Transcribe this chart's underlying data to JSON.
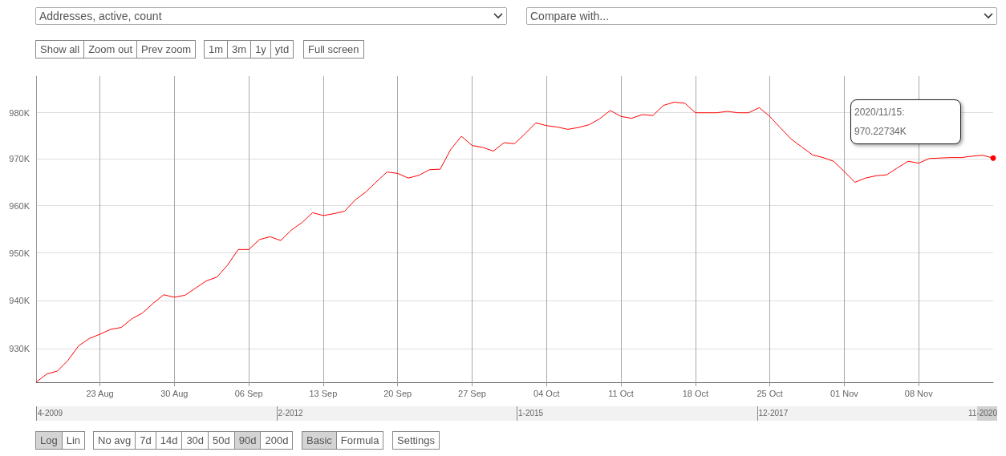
{
  "chart_data": {
    "type": "line",
    "log": true,
    "grid": true,
    "xlim": [
      "2020-08-17",
      "2020-11-15"
    ],
    "xticks": [
      {
        "value": "2020-08-23",
        "label": "23 Aug"
      },
      {
        "value": "2020-08-30",
        "label": "30 Aug"
      },
      {
        "value": "2020-09-06",
        "label": "06 Sep"
      },
      {
        "value": "2020-09-13",
        "label": "13 Sep"
      },
      {
        "value": "2020-09-20",
        "label": "20 Sep"
      },
      {
        "value": "2020-09-27",
        "label": "27 Sep"
      },
      {
        "value": "2020-10-04",
        "label": "04 Oct"
      },
      {
        "value": "2020-10-11",
        "label": "11 Oct"
      },
      {
        "value": "2020-10-18",
        "label": "18 Oct"
      },
      {
        "value": "2020-10-25",
        "label": "25 Oct"
      },
      {
        "value": "2020-11-01",
        "label": "01 Nov"
      },
      {
        "value": "2020-11-08",
        "label": "08 Nov"
      }
    ],
    "ylim": [
      923.1,
      988
    ],
    "yticks": [
      {
        "value": 930,
        "label": "930K"
      },
      {
        "value": 940,
        "label": "940K"
      },
      {
        "value": 950,
        "label": "950K"
      },
      {
        "value": 960,
        "label": "960K"
      },
      {
        "value": 970,
        "label": "970K"
      },
      {
        "value": 980,
        "label": "980K"
      }
    ],
    "x": [
      "2020-08-17",
      "2020-08-18",
      "2020-08-19",
      "2020-08-20",
      "2020-08-21",
      "2020-08-22",
      "2020-08-23",
      "2020-08-24",
      "2020-08-25",
      "2020-08-26",
      "2020-08-27",
      "2020-08-28",
      "2020-08-29",
      "2020-08-30",
      "2020-08-31",
      "2020-09-01",
      "2020-09-02",
      "2020-09-03",
      "2020-09-04",
      "2020-09-05",
      "2020-09-06",
      "2020-09-07",
      "2020-09-08",
      "2020-09-09",
      "2020-09-10",
      "2020-09-11",
      "2020-09-12",
      "2020-09-13",
      "2020-09-14",
      "2020-09-15",
      "2020-09-16",
      "2020-09-17",
      "2020-09-18",
      "2020-09-19",
      "2020-09-20",
      "2020-09-21",
      "2020-09-22",
      "2020-09-23",
      "2020-09-24",
      "2020-09-25",
      "2020-09-26",
      "2020-09-27",
      "2020-09-28",
      "2020-09-29",
      "2020-09-30",
      "2020-10-01",
      "2020-10-02",
      "2020-10-03",
      "2020-10-04",
      "2020-10-05",
      "2020-10-06",
      "2020-10-07",
      "2020-10-08",
      "2020-10-09",
      "2020-10-10",
      "2020-10-11",
      "2020-10-12",
      "2020-10-13",
      "2020-10-14",
      "2020-10-15",
      "2020-10-16",
      "2020-10-17",
      "2020-10-18",
      "2020-10-19",
      "2020-10-20",
      "2020-10-21",
      "2020-10-22",
      "2020-10-23",
      "2020-10-24",
      "2020-10-25",
      "2020-10-26",
      "2020-10-27",
      "2020-10-28",
      "2020-10-29",
      "2020-10-30",
      "2020-10-31",
      "2020-11-01",
      "2020-11-02",
      "2020-11-03",
      "2020-11-04",
      "2020-11-05",
      "2020-11-06",
      "2020-11-07",
      "2020-11-08",
      "2020-11-09",
      "2020-11-10",
      "2020-11-11",
      "2020-11-12",
      "2020-11-13",
      "2020-11-14",
      "2020-11-15"
    ],
    "series": [
      {
        "color": "#ff0000",
        "values": [
          923.1,
          924.8,
          925.4,
          927.6,
          930.6,
          932.1,
          933.0,
          934.0,
          934.4,
          936.2,
          937.4,
          939.4,
          941.2,
          940.7,
          941.1,
          942.6,
          944.1,
          944.9,
          947.4,
          950.7,
          950.7,
          952.8,
          953.4,
          952.6,
          954.8,
          956.4,
          958.5,
          957.9,
          958.3,
          958.8,
          961.2,
          962.9,
          965.1,
          967.2,
          966.9,
          965.9,
          966.5,
          967.7,
          967.8,
          972.1,
          974.9,
          972.9,
          972.5,
          971.7,
          973.5,
          973.3,
          975.5,
          977.8,
          977.2,
          976.9,
          976.4,
          976.8,
          977.4,
          978.7,
          980.5,
          979.2,
          978.8,
          979.6,
          979.4,
          981.6,
          982.3,
          982.1,
          980.0,
          980.0,
          980.0,
          980.3,
          980.0,
          980.0,
          981.1,
          979.2,
          976.7,
          974.3,
          972.6,
          970.9,
          970.3,
          969.5,
          967.3,
          965.0,
          965.9,
          966.4,
          966.6,
          968.1,
          969.5,
          969.1,
          970.1,
          970.2,
          970.3,
          970.3,
          970.6,
          970.8,
          970.2
        ]
      }
    ],
    "annotations": [
      "2020/11/15:\n970.22734K",
      "Addresses, active, count",
      "Compare with...",
      "Show all",
      "Zoom out",
      "Prev zoom",
      "1m",
      "3m",
      "1y",
      "ytd",
      "Full screen",
      "4-2009",
      "2-2012",
      "1-2015",
      "12-2017",
      "11-2020",
      "Log",
      "Lin",
      "No avg",
      "7d",
      "14d",
      "30d",
      "50d",
      "90d",
      "200d",
      "Basic",
      "Formula",
      "Settings"
    ]
  }
}
